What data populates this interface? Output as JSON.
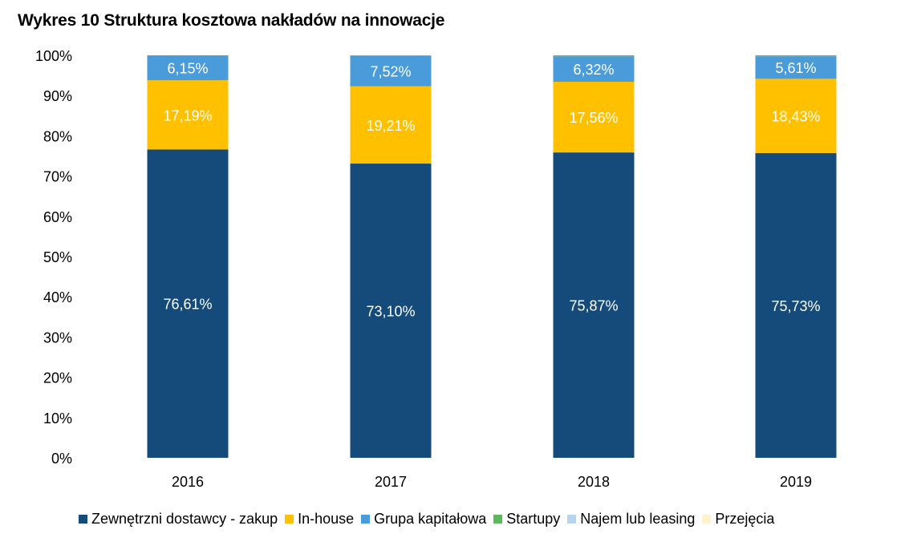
{
  "title": "Wykres 10 Struktura kosztowa nakładów na innowacje",
  "chart_data": {
    "type": "bar",
    "stacked": true,
    "categories": [
      "2016",
      "2017",
      "2018",
      "2019"
    ],
    "series": [
      {
        "name": "Zewnętrzni dostawcy - zakup",
        "color": "#144B7B",
        "values": [
          76.61,
          73.1,
          75.87,
          75.73
        ],
        "labels": [
          "76,61%",
          "73,10%",
          "75,87%",
          "75,73%"
        ]
      },
      {
        "name": "In-house",
        "color": "#FFC000",
        "values": [
          17.19,
          19.21,
          17.56,
          18.43
        ],
        "labels": [
          "17,19%",
          "19,21%",
          "17,56%",
          "18,43%"
        ]
      },
      {
        "name": "Grupa kapitałowa",
        "color": "#4A9BDA",
        "values": [
          6.15,
          7.52,
          6.32,
          5.61
        ],
        "labels": [
          "6,15%",
          "7,52%",
          "6,32%",
          "5,61%"
        ]
      },
      {
        "name": "Startupy",
        "color": "#5CB85C",
        "values": [
          0.05,
          0.17,
          0.25,
          0.23
        ],
        "labels": [
          "",
          "",
          "",
          ""
        ]
      },
      {
        "name": "Najem lub leasing",
        "color": "#B7D5EE",
        "values": [
          0,
          0,
          0,
          0
        ],
        "labels": [
          "",
          "",
          "",
          ""
        ]
      },
      {
        "name": "Przejęcia",
        "color": "#FFF2CC",
        "values": [
          0,
          0,
          0,
          0
        ],
        "labels": [
          "",
          "",
          "",
          ""
        ]
      }
    ],
    "ylim": [
      0,
      100
    ],
    "yticks": [
      "0%",
      "10%",
      "20%",
      "30%",
      "40%",
      "50%",
      "60%",
      "70%",
      "80%",
      "90%",
      "100%"
    ],
    "grid": false,
    "legend_position": "bottom"
  }
}
